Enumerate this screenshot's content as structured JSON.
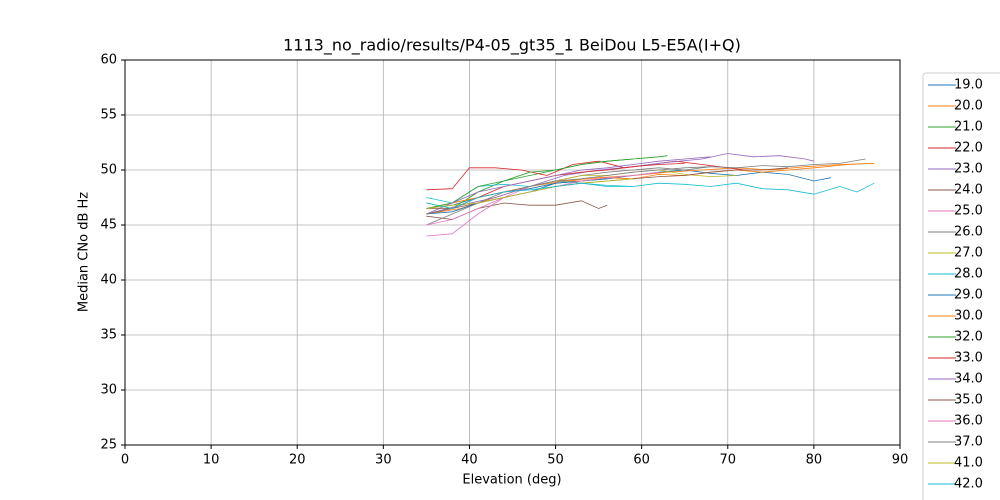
{
  "chart_data": {
    "type": "line",
    "title": "1113_no_radio/results/P4-05_gt35_1 BeiDou L5-E5A(I+Q)",
    "x_label": "Elevation (deg)",
    "y_label": "Median CNo dB Hz",
    "xlim": [
      0,
      90
    ],
    "ylim": [
      25,
      60
    ],
    "xticks": [
      0,
      10,
      20,
      30,
      40,
      50,
      60,
      70,
      80,
      90
    ],
    "yticks": [
      25,
      30,
      35,
      40,
      45,
      50,
      55,
      60
    ],
    "grid": true,
    "legend": "right",
    "series": [
      {
        "name": "19.0",
        "color": "#1f77b4",
        "x": [
          35,
          38,
          41,
          44,
          47,
          50,
          53,
          56,
          59,
          62,
          65,
          68,
          71,
          74,
          77,
          80,
          82
        ],
        "values": [
          46.5,
          46.8,
          47.5,
          48,
          48.3,
          48.8,
          49,
          49.2,
          49.5,
          49.8,
          50,
          49.7,
          49.5,
          49.8,
          49.6,
          49,
          49.3
        ]
      },
      {
        "name": "20.0",
        "color": "#ff7f0e",
        "x": [
          35,
          39,
          43,
          47,
          51,
          55,
          59,
          63,
          67,
          71,
          75,
          79,
          83,
          87
        ],
        "values": [
          46,
          46.5,
          47.5,
          48.5,
          49,
          49.3,
          49.5,
          49.8,
          50,
          50.2,
          50,
          50.3,
          50.5,
          50.6
        ]
      },
      {
        "name": "21.0",
        "color": "#2ca02c",
        "x": [
          35,
          38,
          41,
          44,
          47,
          50,
          53,
          56,
          59,
          62,
          63
        ],
        "values": [
          47,
          46.5,
          48,
          49,
          49.5,
          50,
          50.5,
          50.8,
          51,
          51.2,
          51.3
        ]
      },
      {
        "name": "22.0",
        "color": "#d62728",
        "x": [
          35,
          38,
          40,
          43,
          46,
          49,
          52,
          55,
          58,
          61,
          64,
          67,
          70,
          72
        ],
        "values": [
          48.2,
          48.3,
          50.2,
          50.2,
          50,
          49.5,
          50.5,
          50.8,
          50.2,
          50.5,
          50.8,
          50.5,
          50.2,
          50
        ]
      },
      {
        "name": "23.0",
        "color": "#9467bd",
        "x": [
          35,
          39,
          43,
          47,
          51,
          55,
          59,
          63,
          67,
          70,
          73,
          76,
          79,
          80
        ],
        "values": [
          46,
          46.8,
          47.5,
          48.5,
          49.5,
          50,
          50.3,
          50.7,
          51,
          51.5,
          51.2,
          51.3,
          51,
          50.8
        ]
      },
      {
        "name": "24.0",
        "color": "#8c564b",
        "x": [
          35,
          38,
          41,
          44,
          47,
          50,
          53,
          55,
          56
        ],
        "values": [
          45.8,
          45.5,
          46.5,
          47,
          46.8,
          46.8,
          47.2,
          46.5,
          46.8
        ]
      },
      {
        "name": "25.0",
        "color": "#e377c2",
        "x": [
          35,
          38,
          41,
          44,
          47,
          50,
          53
        ],
        "values": [
          44,
          44.2,
          46,
          47.5,
          48.5,
          49,
          49.5
        ]
      },
      {
        "name": "26.0",
        "color": "#7f7f7f",
        "x": [
          35,
          38,
          41,
          44,
          47,
          50,
          53,
          56,
          59,
          62,
          65,
          68,
          71,
          74,
          77,
          80,
          83,
          86
        ],
        "values": [
          45,
          46,
          47,
          48,
          48.5,
          49,
          49.5,
          49.8,
          50,
          50.2,
          50,
          50.3,
          50.2,
          50.4,
          50.3,
          50.5,
          50.6,
          51
        ]
      },
      {
        "name": "27.0",
        "color": "#bcbd22",
        "x": [
          35,
          38,
          41,
          44,
          47,
          50,
          53,
          56,
          59,
          62,
          65,
          68,
          71
        ],
        "values": [
          46.5,
          47,
          47.5,
          48,
          48.5,
          49,
          49.5,
          49.5,
          49.8,
          50,
          49.6,
          49.4,
          49.5
        ]
      },
      {
        "name": "28.0",
        "color": "#17becf",
        "x": [
          35,
          38,
          41,
          44,
          47,
          50,
          53,
          56,
          59
        ],
        "values": [
          47.5,
          47,
          48.5,
          48.7,
          48.5,
          49,
          48.8,
          48.5,
          48.5
        ]
      },
      {
        "name": "29.0",
        "color": "#1f77b4",
        "x": [
          35,
          38,
          41,
          44,
          47,
          50,
          53,
          56
        ],
        "values": [
          46,
          46.2,
          47,
          47.5,
          48,
          48.8,
          49,
          49.2
        ]
      },
      {
        "name": "30.0",
        "color": "#ff7f0e",
        "x": [
          35,
          38,
          41,
          44,
          47,
          50,
          53,
          56,
          59,
          62,
          65,
          68,
          71,
          74,
          77,
          80,
          84,
          87
        ],
        "values": [
          46.5,
          47,
          47.5,
          48,
          48.5,
          49,
          49,
          49.3,
          49.2,
          49.6,
          49.5,
          49.8,
          50,
          49.8,
          50,
          50.2,
          50.5,
          50.6
        ]
      },
      {
        "name": "32.0",
        "color": "#2ca02c",
        "x": [
          35,
          38,
          41,
          44,
          47,
          50,
          53,
          56,
          59
        ],
        "values": [
          46.5,
          47,
          48.5,
          49,
          49.8,
          50,
          50.5,
          50.8,
          51
        ]
      },
      {
        "name": "33.0",
        "color": "#d62728",
        "x": [
          35,
          38,
          41,
          44,
          47,
          50,
          53,
          56,
          59,
          62,
          65
        ],
        "values": [
          46,
          46.5,
          47.5,
          48.5,
          49,
          49.5,
          49.8,
          50,
          50.3,
          50.5,
          50.6
        ]
      },
      {
        "name": "34.0",
        "color": "#9467bd",
        "x": [
          35,
          38,
          41,
          44,
          47,
          50,
          53,
          56,
          59,
          62,
          65,
          68
        ],
        "values": [
          46,
          47,
          48,
          48.5,
          49,
          49.5,
          50,
          50.2,
          50.5,
          50.8,
          51,
          51.2
        ]
      },
      {
        "name": "35.0",
        "color": "#8c564b",
        "x": [
          35,
          38,
          41,
          44,
          47,
          50,
          53,
          56,
          59,
          62,
          65,
          68,
          71,
          74,
          77
        ],
        "values": [
          46.5,
          46.5,
          47,
          47.5,
          48,
          48.5,
          48.8,
          49,
          49.2,
          49.4,
          49.5,
          49.8,
          50,
          50,
          50.2
        ]
      },
      {
        "name": "36.0",
        "color": "#e377c2",
        "x": [
          35,
          38,
          41,
          44,
          47,
          50,
          53,
          56,
          59,
          62
        ],
        "values": [
          45,
          45.5,
          46.5,
          47.5,
          48,
          48.5,
          49,
          49.3,
          49.5,
          49.8
        ]
      },
      {
        "name": "37.0",
        "color": "#7f7f7f",
        "x": [
          35,
          38,
          41,
          44,
          47,
          50,
          53,
          56,
          59,
          62,
          65,
          68
        ],
        "values": [
          46,
          46.5,
          47.5,
          48,
          48.5,
          49,
          49.2,
          49.5,
          49.8,
          50,
          50.2,
          50.3
        ]
      },
      {
        "name": "41.0",
        "color": "#bcbd22",
        "x": [
          35,
          38,
          41,
          44,
          47,
          50,
          53,
          56,
          59
        ],
        "values": [
          46.5,
          46.8,
          47,
          47.5,
          48,
          48.5,
          48.8,
          49,
          49.2
        ]
      },
      {
        "name": "42.0",
        "color": "#17becf",
        "x": [
          35,
          38,
          41,
          44,
          47,
          50,
          53,
          56,
          59,
          62,
          65,
          68,
          71,
          74,
          77,
          80,
          83,
          85,
          87
        ],
        "values": [
          47,
          46.5,
          47.5,
          48,
          48.2,
          48.5,
          48.8,
          48.6,
          48.5,
          48.8,
          48.7,
          48.5,
          48.8,
          48.3,
          48.2,
          47.8,
          48.5,
          48,
          48.8
        ]
      }
    ]
  }
}
